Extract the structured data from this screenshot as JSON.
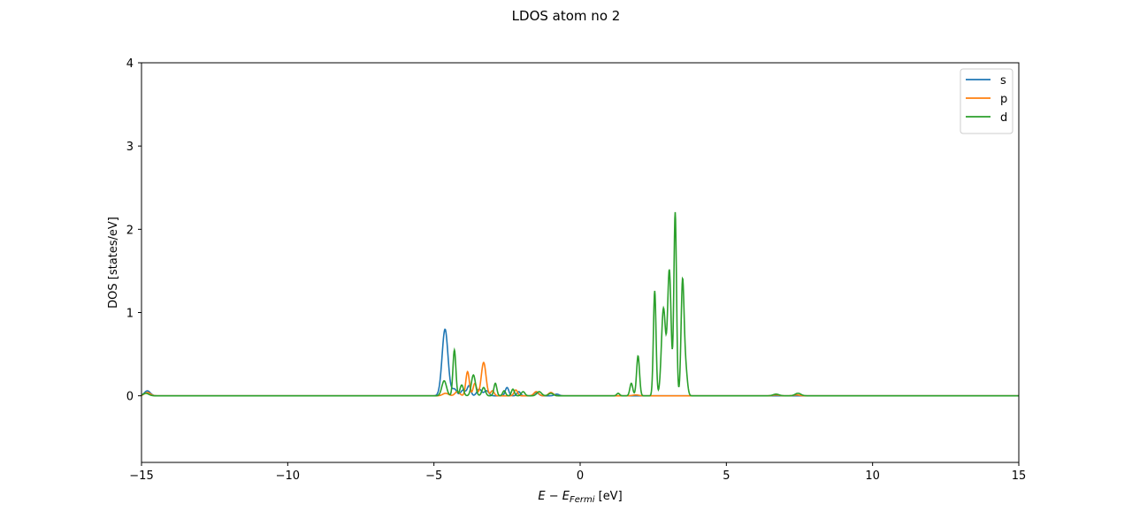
{
  "chart_data": {
    "type": "line",
    "title": "LDOS atom no 2",
    "xlabel": {
      "main": "E − E",
      "sub": "Fermi",
      "unit": " [eV]"
    },
    "ylabel": "DOS [states/eV]",
    "xlim": [
      -15,
      15
    ],
    "ylim": [
      -0.8,
      4
    ],
    "xticks": [
      -15,
      -10,
      -5,
      0,
      5,
      10,
      15
    ],
    "xtick_labels": [
      "−15",
      "−10",
      "−5",
      "0",
      "5",
      "10",
      "15"
    ],
    "yticks": [
      0,
      1,
      2,
      3,
      4
    ],
    "ytick_labels": [
      "0",
      "1",
      "2",
      "3",
      "4"
    ],
    "grid": false,
    "legend_position": "top-right",
    "series": [
      {
        "name": "s",
        "color": "#1f77b4",
        "peaks": [
          {
            "x": -14.8,
            "h": 0.06,
            "w": 0.1
          },
          {
            "x": -4.62,
            "h": 0.8,
            "w": 0.1
          },
          {
            "x": -4.3,
            "h": 0.08,
            "w": 0.08
          },
          {
            "x": -4.0,
            "h": 0.07,
            "w": 0.08
          },
          {
            "x": -3.8,
            "h": 0.12,
            "w": 0.06
          },
          {
            "x": -3.45,
            "h": 0.08,
            "w": 0.08
          },
          {
            "x": -3.2,
            "h": 0.06,
            "w": 0.08
          },
          {
            "x": -2.5,
            "h": 0.1,
            "w": 0.06
          },
          {
            "x": -2.1,
            "h": 0.05,
            "w": 0.06
          },
          {
            "x": -1.5,
            "h": 0.04,
            "w": 0.08
          },
          {
            "x": -0.8,
            "h": 0.02,
            "w": 0.08
          }
        ]
      },
      {
        "name": "p",
        "color": "#ff7f0e",
        "peaks": [
          {
            "x": -14.8,
            "h": 0.04,
            "w": 0.1
          },
          {
            "x": -4.6,
            "h": 0.03,
            "w": 0.1
          },
          {
            "x": -4.2,
            "h": 0.05,
            "w": 0.08
          },
          {
            "x": -3.85,
            "h": 0.29,
            "w": 0.06
          },
          {
            "x": -3.6,
            "h": 0.15,
            "w": 0.06
          },
          {
            "x": -3.3,
            "h": 0.4,
            "w": 0.08
          },
          {
            "x": -3.0,
            "h": 0.06,
            "w": 0.06
          },
          {
            "x": -2.2,
            "h": 0.07,
            "w": 0.06
          },
          {
            "x": -1.5,
            "h": 0.05,
            "w": 0.08
          },
          {
            "x": -1.0,
            "h": 0.04,
            "w": 0.08
          },
          {
            "x": 1.9,
            "h": 0.01,
            "w": 0.1
          },
          {
            "x": 6.7,
            "h": 0.01,
            "w": 0.1
          },
          {
            "x": 7.4,
            "h": 0.01,
            "w": 0.1
          }
        ]
      },
      {
        "name": "d",
        "color": "#2ca02c",
        "peaks": [
          {
            "x": -14.85,
            "h": 0.03,
            "w": 0.1
          },
          {
            "x": -4.65,
            "h": 0.18,
            "w": 0.08
          },
          {
            "x": -4.3,
            "h": 0.55,
            "w": 0.05
          },
          {
            "x": -4.05,
            "h": 0.13,
            "w": 0.06
          },
          {
            "x": -3.65,
            "h": 0.25,
            "w": 0.07
          },
          {
            "x": -3.3,
            "h": 0.1,
            "w": 0.06
          },
          {
            "x": -2.9,
            "h": 0.15,
            "w": 0.05
          },
          {
            "x": -2.6,
            "h": 0.06,
            "w": 0.05
          },
          {
            "x": -2.3,
            "h": 0.08,
            "w": 0.05
          },
          {
            "x": -1.95,
            "h": 0.05,
            "w": 0.06
          },
          {
            "x": -1.4,
            "h": 0.05,
            "w": 0.08
          },
          {
            "x": -1.0,
            "h": 0.03,
            "w": 0.08
          },
          {
            "x": 1.3,
            "h": 0.03,
            "w": 0.05
          },
          {
            "x": 1.75,
            "h": 0.15,
            "w": 0.05
          },
          {
            "x": 1.98,
            "h": 0.48,
            "w": 0.05
          },
          {
            "x": 2.55,
            "h": 1.26,
            "w": 0.045
          },
          {
            "x": 2.85,
            "h": 1.05,
            "w": 0.07
          },
          {
            "x": 3.05,
            "h": 1.5,
            "w": 0.06
          },
          {
            "x": 3.25,
            "h": 2.2,
            "w": 0.045
          },
          {
            "x": 3.5,
            "h": 1.32,
            "w": 0.05
          },
          {
            "x": 3.6,
            "h": 0.35,
            "w": 0.06
          },
          {
            "x": 6.7,
            "h": 0.02,
            "w": 0.1
          },
          {
            "x": 7.45,
            "h": 0.03,
            "w": 0.1
          }
        ]
      }
    ]
  }
}
